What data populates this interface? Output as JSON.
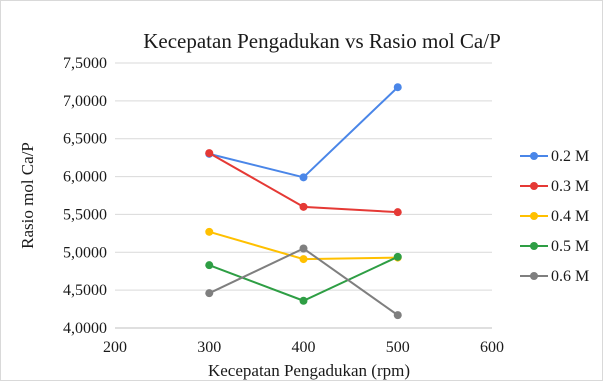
{
  "chart_data": {
    "type": "line",
    "title": "Kecepatan Pengadukan vs Rasio mol Ca/P",
    "xlabel": "Kecepatan Pengadukan (rpm)",
    "ylabel": "Rasio mol Ca/P",
    "xlim": [
      200,
      600
    ],
    "ylim": [
      4.0,
      7.5
    ],
    "x_ticks": [
      200,
      300,
      400,
      500,
      600
    ],
    "x_tick_labels": [
      "200",
      "300",
      "400",
      "500",
      "600"
    ],
    "y_ticks": [
      4.0,
      4.5,
      5.0,
      5.5,
      6.0,
      6.5,
      7.0,
      7.5
    ],
    "y_tick_labels": [
      "4,0000",
      "4,5000",
      "5,0000",
      "5,5000",
      "6,0000",
      "6,5000",
      "7,0000",
      "7,5000"
    ],
    "grid": "horizontal",
    "legend_position": "right",
    "x": [
      300,
      400,
      500
    ],
    "series": [
      {
        "name": "0.2 M",
        "color": "#4a86e8",
        "values": [
          6.3,
          5.99,
          7.18
        ]
      },
      {
        "name": "0.3 M",
        "color": "#e53935",
        "values": [
          6.31,
          5.6,
          5.53
        ]
      },
      {
        "name": "0.4 M",
        "color": "#ffc000",
        "values": [
          5.27,
          4.91,
          4.93
        ]
      },
      {
        "name": "0.5 M",
        "color": "#2e9e44",
        "values": [
          4.83,
          4.36,
          4.94
        ]
      },
      {
        "name": "0.6 M",
        "color": "#7f7f7f",
        "values": [
          4.46,
          5.05,
          4.17
        ]
      }
    ]
  }
}
